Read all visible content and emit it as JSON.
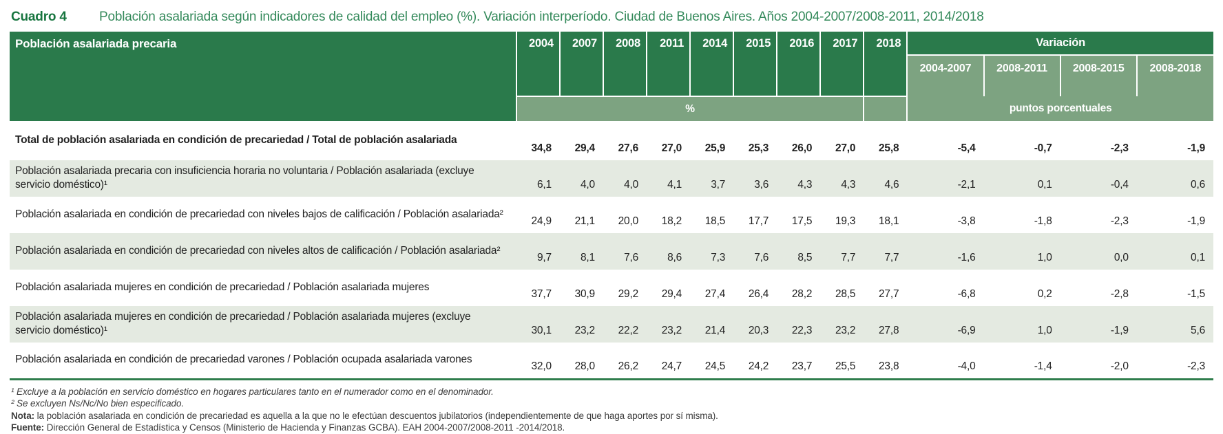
{
  "title": {
    "label": "Cuadro 4",
    "text": "Población asalariada según indicadores de calidad del empleo (%). Variación interperíodo. Ciudad de Buenos Aires. Años 2004-2007/2008-2011, 2014/2018"
  },
  "table": {
    "col_group_label": "Población asalariada precaria",
    "years": [
      "2004",
      "2007",
      "2008",
      "2011",
      "2014",
      "2015",
      "2016",
      "2017",
      "2018"
    ],
    "variation_label": "Variación",
    "variation_periods": [
      "2004-2007",
      "2008-2011",
      "2008-2015",
      "2008-2018"
    ],
    "unit_pct": "%",
    "unit_pp": "puntos porcentuales",
    "rows": [
      {
        "label": "Total de población asalariada en condición de precariedad / Total de población asalariada",
        "bold": true,
        "values": [
          "34,8",
          "29,4",
          "27,6",
          "27,0",
          "25,9",
          "25,3",
          "26,0",
          "27,0",
          "25,8"
        ],
        "variations": [
          "-5,4",
          "-0,7",
          "-2,3",
          "-1,9"
        ]
      },
      {
        "label": "Población asalariada precaria con insuficiencia horaria no voluntaria / Población asalariada (excluye servicio doméstico)¹",
        "bold": false,
        "values": [
          "6,1",
          "4,0",
          "4,0",
          "4,1",
          "3,7",
          "3,6",
          "4,3",
          "4,3",
          "4,6"
        ],
        "variations": [
          "-2,1",
          "0,1",
          "-0,4",
          "0,6"
        ]
      },
      {
        "label": "Población asalariada en condición de precariedad con niveles bajos de calificación / Población asalariada²",
        "bold": false,
        "values": [
          "24,9",
          "21,1",
          "20,0",
          "18,2",
          "18,5",
          "17,7",
          "17,5",
          "19,3",
          "18,1"
        ],
        "variations": [
          "-3,8",
          "-1,8",
          "-2,3",
          "-1,9"
        ]
      },
      {
        "label": "Población asalariada en condición de precariedad con niveles altos de calificación / Población asalariada²",
        "bold": false,
        "values": [
          "9,7",
          "8,1",
          "7,6",
          "8,6",
          "7,3",
          "7,6",
          "8,5",
          "7,7",
          "7,7"
        ],
        "variations": [
          "-1,6",
          "1,0",
          "0,0",
          "0,1"
        ]
      },
      {
        "label": "Población asalariada mujeres en condición de precariedad / Población asalariada mujeres",
        "bold": false,
        "values": [
          "37,7",
          "30,9",
          "29,2",
          "29,4",
          "27,4",
          "26,4",
          "28,2",
          "28,5",
          "27,7"
        ],
        "variations": [
          "-6,8",
          "0,2",
          "-2,8",
          "-1,5"
        ]
      },
      {
        "label": "Población asalariada mujeres en condición de precariedad / Población asalariada mujeres (excluye servicio doméstico)¹",
        "bold": false,
        "values": [
          "30,1",
          "23,2",
          "22,2",
          "23,2",
          "21,4",
          "20,3",
          "22,3",
          "23,2",
          "27,8"
        ],
        "variations": [
          "-6,9",
          "1,0",
          "-1,9",
          "5,6"
        ]
      },
      {
        "label": "Población asalariada en condición de precariedad varones / Población ocupada asalariada varones",
        "bold": false,
        "values": [
          "32,0",
          "28,0",
          "26,2",
          "24,7",
          "24,5",
          "24,2",
          "23,7",
          "25,5",
          "23,8"
        ],
        "variations": [
          "-4,0",
          "-1,4",
          "-2,0",
          "-2,3"
        ]
      }
    ]
  },
  "footnotes": {
    "fn1": "¹ Excluye a la población en servicio doméstico en hogares particulares tanto en el numerador como en el denominador.",
    "fn2": "² Se excluyen Ns/Nc/No bien especificado.",
    "nota_label": "Nota:",
    "nota_text": " la población asalariada en condición de precariedad es aquella a la que no le efectúan descuentos jubilatorios (independientemente de que haga aportes por sí misma).",
    "fuente_label": "Fuente:",
    "fuente_text": " Dirección General de Estadística y Censos (Ministerio de Hacienda y Finanzas GCBA). EAH 2004-2007/2008-2011 -2014/2018."
  },
  "colors": {
    "header_dark_green": "#2a7a4b",
    "header_sage_green": "#7da381",
    "zebra_row": "#e4eae1",
    "rule_green": "#2f7d4c",
    "title_green": "#33895a",
    "cuadro_green": "#17753f"
  }
}
